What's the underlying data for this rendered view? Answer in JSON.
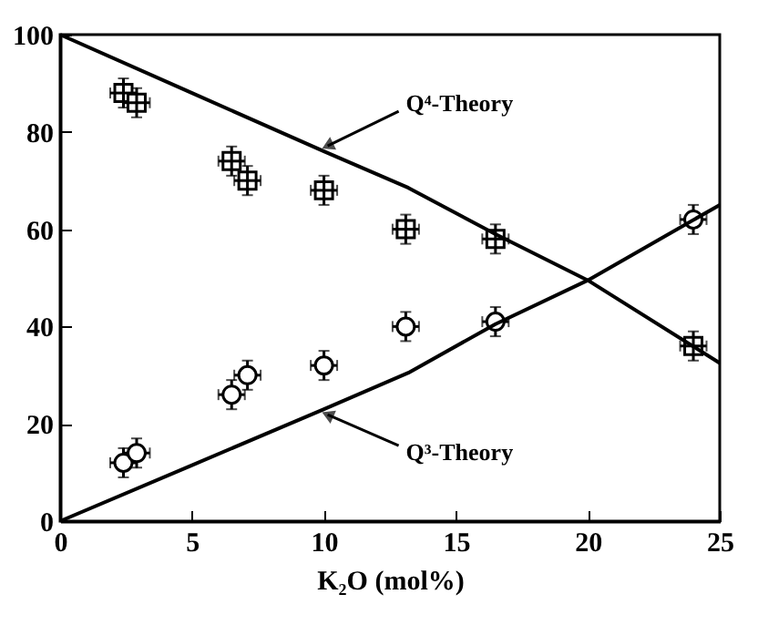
{
  "chart_data": {
    "type": "scatter",
    "xlabel": "K₂O (mol%)",
    "xlim": [
      0,
      25
    ],
    "xticks": [
      0,
      5,
      10,
      15,
      20,
      25
    ],
    "ylim": [
      0,
      100
    ],
    "yticks": [
      0,
      20,
      40,
      60,
      80,
      100
    ],
    "grid": false,
    "series": [
      {
        "marker": "square",
        "color": "#000000",
        "x": [
          2.4,
          2.9,
          6.5,
          7.1,
          10,
          13.1,
          16.5,
          24
        ],
        "values": [
          88,
          86,
          74,
          70,
          68,
          60,
          58,
          36
        ],
        "errors": [
          3,
          3,
          3,
          3,
          3,
          3,
          3,
          3
        ],
        "xerrors": [
          0.5,
          0.5,
          0.5,
          0.5,
          0.5,
          0.5,
          0.5,
          0.5
        ]
      },
      {
        "marker": "circle",
        "color": "#000000",
        "x": [
          2.4,
          2.9,
          6.5,
          7.1,
          10,
          13.1,
          16.5,
          24
        ],
        "values": [
          12,
          14,
          26,
          30,
          32,
          40,
          41,
          62
        ],
        "errors": [
          3,
          3,
          3,
          3,
          3,
          3,
          3,
          3
        ],
        "xerrors": [
          0.5,
          0.5,
          0.5,
          0.5,
          0.5,
          0.5,
          0.5,
          0.5
        ]
      },
      {
        "type": "line",
        "name": "Q⁴-Theory",
        "color": "#000000",
        "line_style": "solid",
        "x": [
          0,
          5,
          10,
          13.2,
          16.5,
          20,
          25
        ],
        "values": [
          100,
          88,
          76,
          68.5,
          59,
          49.5,
          32.5
        ]
      },
      {
        "type": "line",
        "name": "Q³-Theory",
        "color": "#000000",
        "line_style": "solid",
        "x": [
          0,
          5,
          10,
          13.2,
          16.5,
          20,
          25
        ],
        "values": [
          0,
          11.5,
          23,
          30.5,
          40.5,
          49.5,
          65
        ]
      }
    ]
  }
}
